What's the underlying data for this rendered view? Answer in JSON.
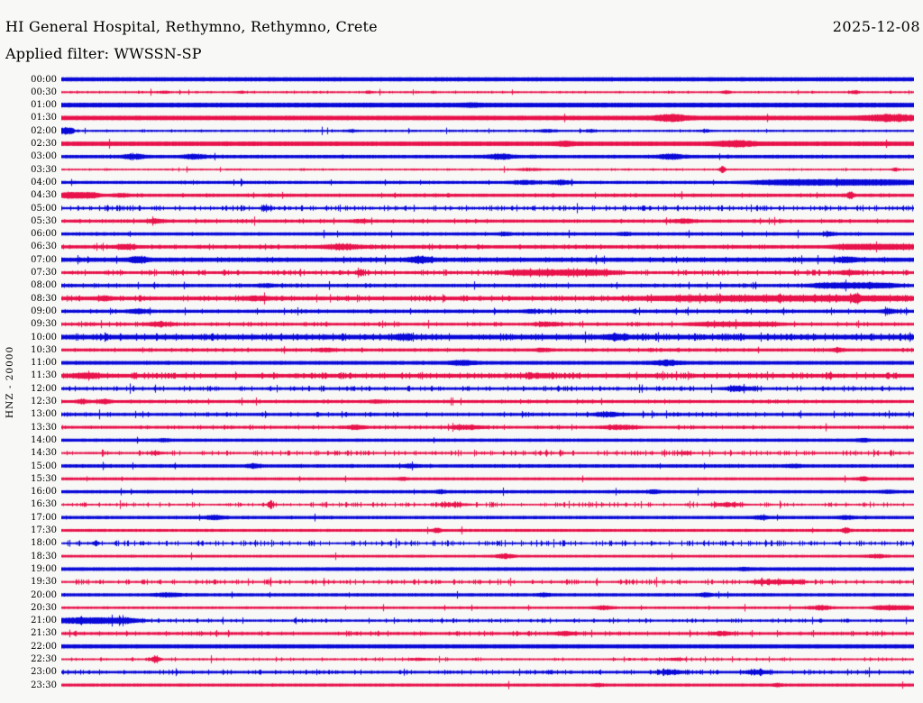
{
  "header": {
    "title": "HI General Hospital, Rethymno, Rethymno, Crete",
    "date": "2025-12-08",
    "filter_line": "Applied filter: WWSSN-SP"
  },
  "chart_data": {
    "type": "line",
    "subtype": "helicorder-dayplot",
    "title": "HI General Hospital, Rethymno, Rethymno, Crete",
    "date": "2025-12-08",
    "applied_filter": "WWSSN-SP",
    "channel_scale_label": "HNZ - 20000",
    "row_interval_minutes": 30,
    "rows_start": "00:00",
    "rows_end": "23:30",
    "legend": "none",
    "grid": false,
    "colors": {
      "blue": "#0808d8",
      "red": "#e8114a",
      "text": "#000000",
      "background": "#f8f8f6"
    },
    "rows": [
      {
        "time": "00:00",
        "color": "blue",
        "base": 2.0,
        "noise": 0.06,
        "events": []
      },
      {
        "time": "00:30",
        "color": "red",
        "base": 0.8,
        "noise": 0.3,
        "events": [
          {
            "x": 0.12,
            "a": 1.0,
            "w": 0.004
          },
          {
            "x": 0.21,
            "a": 0.9,
            "w": 0.003
          },
          {
            "x": 0.36,
            "a": 1.1,
            "w": 0.003
          },
          {
            "x": 0.78,
            "a": 1.2,
            "w": 0.004
          },
          {
            "x": 0.93,
            "a": 1.4,
            "w": 0.004
          }
        ]
      },
      {
        "time": "01:00",
        "color": "blue",
        "base": 2.3,
        "noise": 0.06,
        "events": [
          {
            "x": 0.48,
            "a": 0.8,
            "w": 0.006
          }
        ]
      },
      {
        "time": "01:30",
        "color": "red",
        "base": 2.2,
        "noise": 0.1,
        "events": [
          {
            "x": 0.715,
            "a": 2.4,
            "w": 0.013
          },
          {
            "x": 0.972,
            "a": 2.4,
            "w": 0.02
          }
        ]
      },
      {
        "time": "02:00",
        "color": "blue",
        "base": 0.9,
        "noise": 0.3,
        "events": [
          {
            "x": 0.006,
            "a": 2.6,
            "w": 0.008,
            "f": 1
          },
          {
            "x": 0.34,
            "a": 0.8,
            "w": 0.004
          },
          {
            "x": 0.57,
            "a": 1.0,
            "w": 0.008
          },
          {
            "x": 0.62,
            "a": 1.0,
            "w": 0.004
          },
          {
            "x": 0.755,
            "a": 1.0,
            "w": 0.004
          }
        ]
      },
      {
        "time": "02:30",
        "color": "red",
        "base": 2.2,
        "noise": 0.1,
        "events": [
          {
            "x": 0.59,
            "a": 1.4,
            "w": 0.007
          },
          {
            "x": 0.79,
            "a": 2.0,
            "w": 0.014
          }
        ]
      },
      {
        "time": "03:00",
        "color": "blue",
        "base": 1.6,
        "noise": 0.2,
        "events": [
          {
            "x": 0.085,
            "a": 2.0,
            "w": 0.008
          },
          {
            "x": 0.155,
            "a": 1.8,
            "w": 0.008
          },
          {
            "x": 0.515,
            "a": 2.0,
            "w": 0.01
          },
          {
            "x": 0.715,
            "a": 2.0,
            "w": 0.01
          }
        ]
      },
      {
        "time": "03:30",
        "color": "red",
        "base": 0.7,
        "noise": 0.25,
        "events": [
          {
            "x": 0.55,
            "a": 1.0,
            "w": 0.012
          },
          {
            "x": 0.775,
            "a": 3.2,
            "w": 0.0025
          },
          {
            "x": 0.978,
            "a": 1.5,
            "w": 0.003
          }
        ]
      },
      {
        "time": "04:00",
        "color": "blue",
        "base": 1.4,
        "noise": 0.2,
        "events": [
          {
            "x": 0.545,
            "a": 1.4,
            "w": 0.01
          },
          {
            "x": 0.585,
            "a": 1.6,
            "w": 0.008
          },
          {
            "x": 0.91,
            "a": 2.0,
            "w": 0.09,
            "f": 1
          }
        ]
      },
      {
        "time": "04:30",
        "color": "red",
        "base": 1.5,
        "noise": 0.3,
        "events": [
          {
            "x": 0.02,
            "a": 2.0,
            "w": 0.022,
            "f": 1
          },
          {
            "x": 0.07,
            "a": 1.2,
            "w": 0.006
          },
          {
            "x": 0.925,
            "a": 3.4,
            "w": 0.0025
          }
        ]
      },
      {
        "time": "05:00",
        "color": "blue",
        "base": 1.0,
        "noise": 0.85,
        "events": [
          {
            "x": 0.24,
            "a": 2.2,
            "w": 0.004
          }
        ]
      },
      {
        "time": "05:30",
        "color": "red",
        "base": 1.4,
        "noise": 0.4,
        "events": [
          {
            "x": 0.11,
            "a": 1.2,
            "w": 0.008
          },
          {
            "x": 0.35,
            "a": 1.2,
            "w": 0.006
          },
          {
            "x": 0.73,
            "a": 1.6,
            "w": 0.008
          }
        ]
      },
      {
        "time": "06:00",
        "color": "blue",
        "base": 1.5,
        "noise": 0.25,
        "events": [
          {
            "x": 0.52,
            "a": 0.9,
            "w": 0.005
          },
          {
            "x": 0.66,
            "a": 0.9,
            "w": 0.005
          },
          {
            "x": 0.9,
            "a": 1.0,
            "w": 0.005
          }
        ]
      },
      {
        "time": "06:30",
        "color": "red",
        "base": 1.6,
        "noise": 0.4,
        "events": [
          {
            "x": 0.075,
            "a": 1.8,
            "w": 0.008
          },
          {
            "x": 0.33,
            "a": 1.8,
            "w": 0.016
          },
          {
            "x": 0.955,
            "a": 1.6,
            "w": 0.045,
            "f": 1
          }
        ]
      },
      {
        "time": "07:00",
        "color": "blue",
        "base": 2.0,
        "noise": 0.4,
        "events": [
          {
            "x": 0.09,
            "a": 2.4,
            "w": 0.007
          },
          {
            "x": 0.42,
            "a": 2.4,
            "w": 0.009
          },
          {
            "x": 0.92,
            "a": 1.8,
            "w": 0.008
          }
        ]
      },
      {
        "time": "07:30",
        "color": "red",
        "base": 1.3,
        "noise": 0.7,
        "events": [
          {
            "x": 0.35,
            "a": 3.0,
            "w": 0.003
          },
          {
            "x": 0.585,
            "a": 2.0,
            "w": 0.06,
            "f": 1
          },
          {
            "x": 0.925,
            "a": 1.8,
            "w": 0.01
          }
        ]
      },
      {
        "time": "08:00",
        "color": "blue",
        "base": 1.5,
        "noise": 0.4,
        "events": [
          {
            "x": 0.24,
            "a": 1.2,
            "w": 0.006
          },
          {
            "x": 0.93,
            "a": 1.8,
            "w": 0.045,
            "f": 1
          }
        ]
      },
      {
        "time": "08:30",
        "color": "red",
        "base": 1.8,
        "noise": 0.6,
        "events": [
          {
            "x": 0.05,
            "a": 1.4,
            "w": 0.006
          },
          {
            "x": 0.23,
            "a": 1.4,
            "w": 0.01
          },
          {
            "x": 0.84,
            "a": 1.5,
            "w": 0.15,
            "f": 1
          },
          {
            "x": 0.932,
            "a": 2.6,
            "w": 0.003
          }
        ]
      },
      {
        "time": "09:00",
        "color": "blue",
        "base": 1.5,
        "noise": 0.4,
        "events": [
          {
            "x": 0.09,
            "a": 1.6,
            "w": 0.008
          },
          {
            "x": 0.55,
            "a": 1.2,
            "w": 0.006
          },
          {
            "x": 0.97,
            "a": 1.3,
            "w": 0.006
          }
        ]
      },
      {
        "time": "09:30",
        "color": "red",
        "base": 1.3,
        "noise": 0.5,
        "events": [
          {
            "x": 0.115,
            "a": 1.8,
            "w": 0.01
          },
          {
            "x": 0.57,
            "a": 1.8,
            "w": 0.01
          },
          {
            "x": 0.79,
            "a": 1.2,
            "w": 0.05,
            "f": 1
          }
        ]
      },
      {
        "time": "10:00",
        "color": "blue",
        "base": 2.2,
        "noise": 0.7,
        "events": [
          {
            "x": 0.4,
            "a": 1.3,
            "w": 0.008
          },
          {
            "x": 0.65,
            "a": 1.6,
            "w": 0.009
          }
        ]
      },
      {
        "time": "10:30",
        "color": "red",
        "base": 1.4,
        "noise": 0.4,
        "events": [
          {
            "x": 0.31,
            "a": 1.3,
            "w": 0.007
          },
          {
            "x": 0.565,
            "a": 1.2,
            "w": 0.006
          },
          {
            "x": 0.91,
            "a": 1.2,
            "w": 0.006
          }
        ]
      },
      {
        "time": "11:00",
        "color": "blue",
        "base": 1.8,
        "noise": 0.15,
        "events": [
          {
            "x": 0.47,
            "a": 1.8,
            "w": 0.009
          },
          {
            "x": 0.71,
            "a": 1.8,
            "w": 0.01
          }
        ]
      },
      {
        "time": "11:30",
        "color": "red",
        "base": 1.8,
        "noise": 0.7,
        "events": [
          {
            "x": 0.028,
            "a": 2.2,
            "w": 0.012
          },
          {
            "x": 0.56,
            "a": 1.4,
            "w": 0.01
          }
        ]
      },
      {
        "time": "12:00",
        "color": "blue",
        "base": 1.2,
        "noise": 0.7,
        "events": [
          {
            "x": 0.795,
            "a": 1.8,
            "w": 0.012
          }
        ]
      },
      {
        "time": "12:30",
        "color": "red",
        "base": 1.4,
        "noise": 0.3,
        "events": [
          {
            "x": 0.025,
            "a": 1.6,
            "w": 0.005
          },
          {
            "x": 0.05,
            "a": 1.6,
            "w": 0.005
          },
          {
            "x": 0.37,
            "a": 1.0,
            "w": 0.005
          }
        ]
      },
      {
        "time": "13:00",
        "color": "blue",
        "base": 1.4,
        "noise": 0.5,
        "events": [
          {
            "x": 0.64,
            "a": 2.0,
            "w": 0.01
          }
        ]
      },
      {
        "time": "13:30",
        "color": "red",
        "base": 1.3,
        "noise": 0.4,
        "events": [
          {
            "x": 0.345,
            "a": 1.5,
            "w": 0.008
          },
          {
            "x": 0.475,
            "a": 1.7,
            "w": 0.012
          },
          {
            "x": 0.655,
            "a": 1.7,
            "w": 0.014
          }
        ]
      },
      {
        "time": "14:00",
        "color": "blue",
        "base": 1.5,
        "noise": 0.1,
        "events": [
          {
            "x": 0.12,
            "a": 0.9,
            "w": 0.004
          },
          {
            "x": 0.94,
            "a": 1.1,
            "w": 0.005
          }
        ]
      },
      {
        "time": "14:30",
        "color": "red",
        "base": 0.9,
        "noise": 0.8,
        "events": [
          {
            "x": 0.11,
            "a": 1.4,
            "w": 0.005
          },
          {
            "x": 0.73,
            "a": 1.4,
            "w": 0.005
          }
        ]
      },
      {
        "time": "15:00",
        "color": "blue",
        "base": 1.6,
        "noise": 0.2,
        "events": [
          {
            "x": 0.225,
            "a": 1.4,
            "w": 0.005
          },
          {
            "x": 0.41,
            "a": 1.2,
            "w": 0.005
          },
          {
            "x": 0.86,
            "a": 1.1,
            "w": 0.005
          }
        ]
      },
      {
        "time": "15:30",
        "color": "red",
        "base": 1.3,
        "noise": 0.08,
        "events": [
          {
            "x": 0.4,
            "a": 0.8,
            "w": 0.004
          },
          {
            "x": 0.94,
            "a": 1.6,
            "w": 0.004
          }
        ]
      },
      {
        "time": "16:00",
        "color": "blue",
        "base": 1.5,
        "noise": 0.12,
        "events": [
          {
            "x": 0.445,
            "a": 1.0,
            "w": 0.004
          },
          {
            "x": 0.695,
            "a": 1.2,
            "w": 0.005
          },
          {
            "x": 0.97,
            "a": 1.0,
            "w": 0.005
          }
        ]
      },
      {
        "time": "16:30",
        "color": "red",
        "base": 0.7,
        "noise": 0.8,
        "events": [
          {
            "x": 0.245,
            "a": 3.0,
            "w": 0.0025
          },
          {
            "x": 0.46,
            "a": 1.8,
            "w": 0.01
          },
          {
            "x": 0.78,
            "a": 1.8,
            "w": 0.012
          }
        ]
      },
      {
        "time": "17:00",
        "color": "blue",
        "base": 1.5,
        "noise": 0.2,
        "events": [
          {
            "x": 0.18,
            "a": 1.4,
            "w": 0.008
          },
          {
            "x": 0.82,
            "a": 1.1,
            "w": 0.006
          },
          {
            "x": 0.92,
            "a": 1.1,
            "w": 0.006
          }
        ]
      },
      {
        "time": "17:30",
        "color": "red",
        "base": 1.3,
        "noise": 0.1,
        "events": [
          {
            "x": 0.44,
            "a": 2.0,
            "w": 0.003
          },
          {
            "x": 0.92,
            "a": 2.4,
            "w": 0.003
          }
        ]
      },
      {
        "time": "18:00",
        "color": "blue",
        "base": 0.8,
        "noise": 0.9,
        "events": [
          {
            "x": 0.04,
            "a": 2.4,
            "w": 0.0025
          }
        ]
      },
      {
        "time": "18:30",
        "color": "red",
        "base": 1.2,
        "noise": 0.1,
        "events": [
          {
            "x": 0.52,
            "a": 1.8,
            "w": 0.007
          },
          {
            "x": 0.955,
            "a": 1.2,
            "w": 0.008
          }
        ]
      },
      {
        "time": "19:00",
        "color": "blue",
        "base": 1.7,
        "noise": 0.06,
        "events": [
          {
            "x": 0.8,
            "a": 0.9,
            "w": 0.004
          }
        ]
      },
      {
        "time": "19:30",
        "color": "red",
        "base": 0.9,
        "noise": 0.8,
        "events": [
          {
            "x": 0.84,
            "a": 1.5,
            "w": 0.028,
            "f": 1
          }
        ]
      },
      {
        "time": "20:00",
        "color": "blue",
        "base": 1.5,
        "noise": 0.15,
        "events": [
          {
            "x": 0.125,
            "a": 1.4,
            "w": 0.01
          },
          {
            "x": 0.565,
            "a": 1.0,
            "w": 0.005
          },
          {
            "x": 0.755,
            "a": 1.0,
            "w": 0.005
          }
        ]
      },
      {
        "time": "20:30",
        "color": "red",
        "base": 1.1,
        "noise": 0.15,
        "events": [
          {
            "x": 0.635,
            "a": 1.6,
            "w": 0.008
          },
          {
            "x": 0.89,
            "a": 1.9,
            "w": 0.009
          },
          {
            "x": 0.975,
            "a": 1.5,
            "w": 0.022,
            "f": 1
          }
        ]
      },
      {
        "time": "21:00",
        "color": "blue",
        "base": 1.0,
        "noise": 0.5,
        "events": [
          {
            "x": 0.042,
            "a": 2.5,
            "w": 0.045,
            "f": 1
          }
        ]
      },
      {
        "time": "21:30",
        "color": "red",
        "base": 1.3,
        "noise": 0.5,
        "events": [
          {
            "x": 0.59,
            "a": 1.5,
            "w": 0.008
          },
          {
            "x": 0.775,
            "a": 1.4,
            "w": 0.007
          }
        ]
      },
      {
        "time": "22:00",
        "color": "blue",
        "base": 2.0,
        "noise": 0.06,
        "events": []
      },
      {
        "time": "22:30",
        "color": "red",
        "base": 0.8,
        "noise": 0.5,
        "events": [
          {
            "x": 0.11,
            "a": 4.0,
            "w": 0.0035
          },
          {
            "x": 0.42,
            "a": 1.0,
            "w": 0.008
          },
          {
            "x": 0.72,
            "a": 1.0,
            "w": 0.006
          }
        ]
      },
      {
        "time": "23:00",
        "color": "blue",
        "base": 1.2,
        "noise": 0.65,
        "events": [
          {
            "x": 0.715,
            "a": 2.0,
            "w": 0.009
          },
          {
            "x": 0.815,
            "a": 2.2,
            "w": 0.009
          }
        ]
      },
      {
        "time": "23:30",
        "color": "red",
        "base": 1.4,
        "noise": 0.08,
        "events": [
          {
            "x": 0.63,
            "a": 0.8,
            "w": 0.004
          },
          {
            "x": 0.84,
            "a": 0.9,
            "w": 0.004
          }
        ]
      }
    ]
  }
}
